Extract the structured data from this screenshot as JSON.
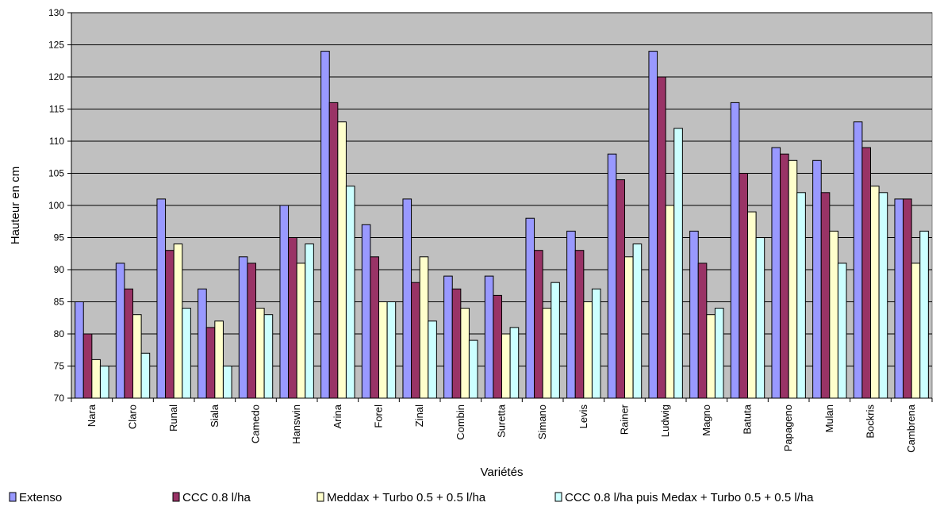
{
  "chart_data": {
    "type": "bar",
    "title": "",
    "xlabel": "Variétés",
    "ylabel": "Hauteur en cm",
    "ylim": [
      70,
      130
    ],
    "yticks": [
      70,
      75,
      80,
      85,
      90,
      95,
      100,
      105,
      110,
      115,
      120,
      125,
      130
    ],
    "grid": true,
    "legend_position": "bottom",
    "plot_background": "#c0c0c0",
    "categories": [
      "Nara",
      "Claro",
      "Runal",
      "Siala",
      "Camedo",
      "Hanswin",
      "Arina",
      "Forel",
      "Zinal",
      "Combin",
      "Suretta",
      "Simano",
      "Levis",
      "Rainer",
      "Ludwig",
      "Magno",
      "Batuta",
      "Papageno",
      "Mulan",
      "Bockris",
      "Cambrena"
    ],
    "series": [
      {
        "name": "Extenso",
        "color": "#9999ff",
        "values": [
          85,
          91,
          101,
          87,
          92,
          100,
          124,
          97,
          101,
          89,
          89,
          98,
          96,
          108,
          124,
          96,
          116,
          109,
          107,
          113,
          101
        ]
      },
      {
        "name": "CCC 0.8 l/ha",
        "color": "#993366",
        "values": [
          80,
          87,
          93,
          81,
          91,
          95,
          116,
          92,
          88,
          87,
          86,
          93,
          93,
          104,
          120,
          91,
          105,
          108,
          102,
          109,
          101
        ]
      },
      {
        "name": "Meddax + Turbo  0.5 + 0.5 l/ha",
        "color": "#ffffcc",
        "values": [
          76,
          83,
          94,
          82,
          84,
          91,
          113,
          85,
          92,
          84,
          80,
          84,
          85,
          92,
          100,
          83,
          99,
          107,
          96,
          103,
          91
        ]
      },
      {
        "name": "CCC 0.8 l/ha puis  Medax + Turbo 0.5 + 0.5 l/ha",
        "color": "#ccffff",
        "values": [
          75,
          77,
          84,
          75,
          83,
          94,
          103,
          85,
          82,
          79,
          81,
          88,
          87,
          94,
          112,
          84,
          95,
          102,
          91,
          102,
          96
        ]
      }
    ]
  }
}
